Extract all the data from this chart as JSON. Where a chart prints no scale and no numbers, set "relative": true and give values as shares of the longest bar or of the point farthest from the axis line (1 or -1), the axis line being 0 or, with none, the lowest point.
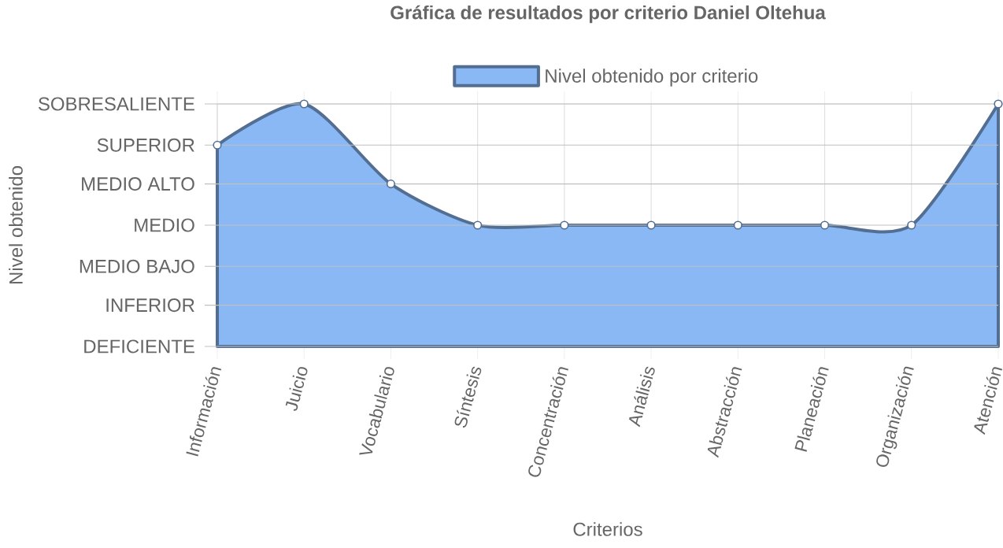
{
  "chart_data": {
    "type": "area",
    "title": "Gráfica de resultados por criterio Daniel Oltehua",
    "xlabel": "Criterios",
    "annotations": [
      "Nivel obtenido"
    ],
    "categories": [
      "Información",
      "Juicio",
      "Vocabulario",
      "Síntesis",
      "Concentración",
      "Análisis",
      "Abstracción",
      "Planeación",
      "Organización",
      "Atención"
    ],
    "series": [
      {
        "name": "Nivel obtenido por criterio",
        "color": "#8ab8f5",
        "values": [
          0.83,
          1,
          0.67,
          0.5,
          0.5,
          0.5,
          0.5,
          0.5,
          0.5,
          1
        ]
      }
    ],
    "relative": true,
    "ref_lines": [
      {
        "axis": "y",
        "value": 0,
        "label": "DEFICIENTE"
      },
      {
        "axis": "y",
        "value": 0.17,
        "label": "INFERIOR"
      },
      {
        "axis": "y",
        "value": 0.33,
        "label": "MEDIO BAJO"
      },
      {
        "axis": "y",
        "value": 0.5,
        "label": "MEDIO"
      },
      {
        "axis": "y",
        "value": 0.67,
        "label": "MEDIO ALTO"
      },
      {
        "axis": "y",
        "value": 0.83,
        "label": "SUPERIOR"
      },
      {
        "axis": "y",
        "value": 1,
        "label": "SOBRESALIENTE"
      }
    ],
    "grid": "x",
    "legend": "top",
    "marker": "circle",
    "line_style": "solid"
  }
}
